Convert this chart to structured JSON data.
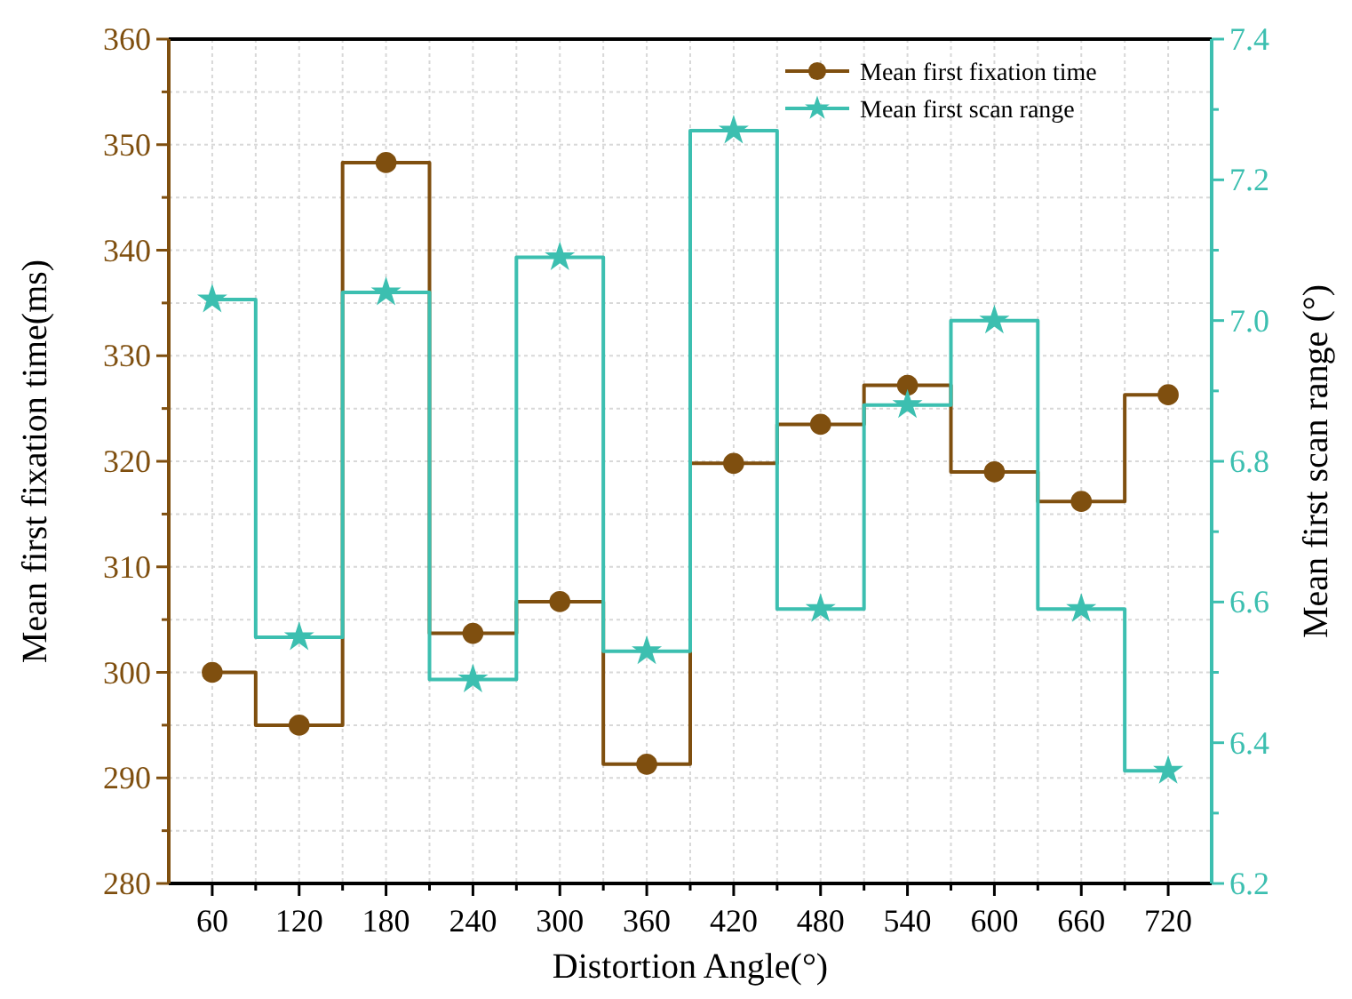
{
  "chart_data": {
    "type": "step",
    "xlabel": "Distortion Angle(°)",
    "ylabel": "Mean first fixation time(ms)",
    "y2label": "Mean first scan range (°)",
    "x": [
      60,
      120,
      180,
      240,
      300,
      360,
      420,
      480,
      540,
      600,
      660,
      720
    ],
    "xlim": [
      30,
      750
    ],
    "xticks": [
      60,
      {
        "value": 90,
        "label": null
      },
      120,
      {
        "value": 150,
        "label": null
      },
      180,
      {
        "value": 210,
        "label": null
      },
      240,
      {
        "value": 270,
        "label": null
      },
      300,
      {
        "value": 330,
        "label": null
      },
      360,
      {
        "value": 390,
        "label": null
      },
      420,
      {
        "value": 450,
        "label": null
      },
      480,
      {
        "value": 510,
        "label": null
      },
      540,
      {
        "value": 570,
        "label": null
      },
      600,
      {
        "value": 630,
        "label": null
      },
      660,
      {
        "value": 690,
        "label": null
      },
      720
    ],
    "ylim": [
      280,
      360
    ],
    "yticks": [
      280,
      {
        "value": 285,
        "label": null
      },
      290,
      {
        "value": 295,
        "label": null
      },
      300,
      {
        "value": 305,
        "label": null
      },
      310,
      {
        "value": 315,
        "label": null
      },
      320,
      {
        "value": 325,
        "label": null
      },
      330,
      {
        "value": 335,
        "label": null
      },
      340,
      {
        "value": 345,
        "label": null
      },
      350,
      {
        "value": 355,
        "label": null
      },
      360
    ],
    "y2lim": [
      6.2,
      7.4
    ],
    "y2ticks": [
      6.2,
      {
        "value": 6.3,
        "label": null
      },
      6.4,
      {
        "value": 6.5,
        "label": null
      },
      6.6,
      {
        "value": 6.7,
        "label": null
      },
      6.8,
      {
        "value": 6.9,
        "label": null
      },
      {
        "value": 7.0,
        "label": "7.0"
      },
      {
        "value": 7.1,
        "label": null
      },
      7.2,
      {
        "value": 7.3,
        "label": null
      },
      7.4
    ],
    "grid": true,
    "legend": "top right",
    "line_style": "solid",
    "series": [
      {
        "name": "Mean first fixation time",
        "color": "#7f4f0f",
        "marker": "circle",
        "values": [
          300,
          295,
          348.3,
          303.7,
          306.7,
          291.3,
          319.8,
          323.5,
          327.2,
          319,
          316.2,
          326.3
        ]
      },
      {
        "name": "Mean first scan range",
        "color": "#3cbfb0",
        "marker": "star",
        "axis": "y2",
        "values": [
          7.03,
          6.55,
          7.04,
          6.49,
          7.09,
          6.53,
          7.27,
          6.59,
          6.88,
          7.0,
          6.59,
          6.36
        ]
      }
    ]
  }
}
